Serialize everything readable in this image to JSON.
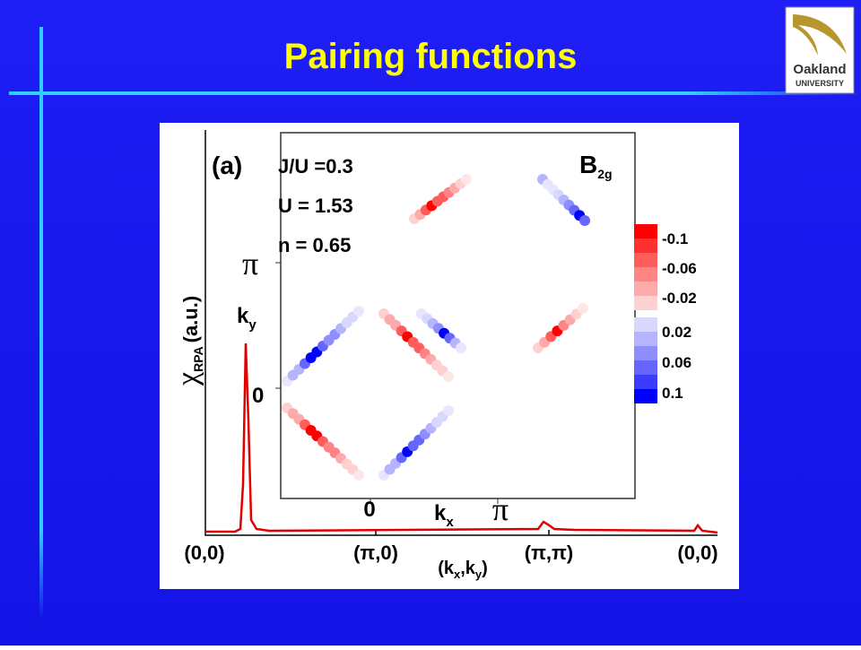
{
  "slide": {
    "title": "Pairing functions",
    "logo": {
      "name": "Oakland",
      "subtitle": "UNIVERSITY"
    },
    "figure": {
      "panel": "(a)",
      "params": [
        "J/U =0.3",
        "U = 1.53",
        "n = 0.65"
      ],
      "symmetry": {
        "base": "B",
        "sub": "2g"
      },
      "colorbar": [
        "-0.1",
        "-0.06",
        "-0.02",
        "0.02",
        "0.06",
        "0.1"
      ],
      "inset_axes": {
        "y_ticks": [
          "π",
          "0"
        ],
        "y_label": {
          "base": "k",
          "sub": "y"
        },
        "x_ticks": [
          "0",
          "π"
        ],
        "x_label": {
          "base": "k",
          "sub": "x"
        }
      },
      "y_label": {
        "symbol": "χ",
        "sub": "RPA",
        "unit": "(a.u.)"
      },
      "x_ticks": [
        "(0,0)",
        "(π,0)",
        "(π,π)",
        "(0,0)"
      ],
      "x_label": {
        "open": "(k",
        "sub1": "x",
        "mid": ",k",
        "sub2": "y",
        "close": ")"
      }
    }
  }
}
